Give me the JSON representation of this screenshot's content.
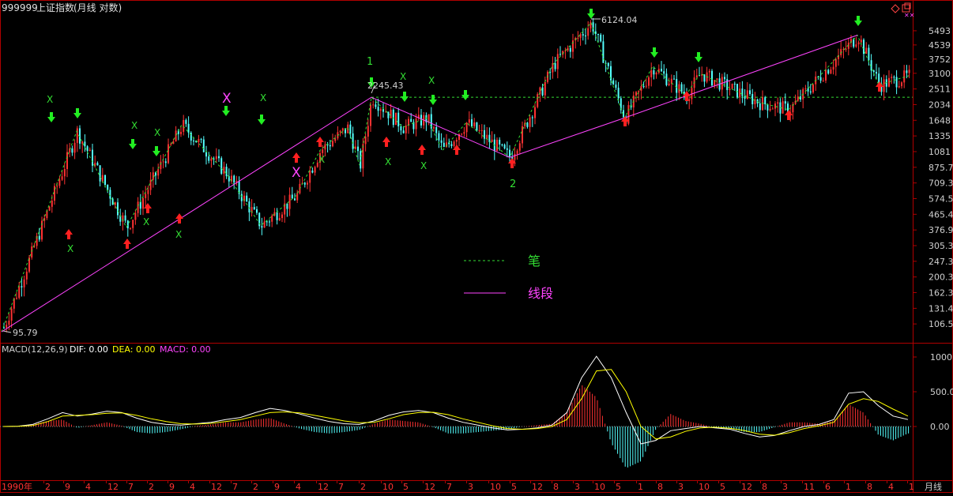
{
  "header": {
    "code": "999999",
    "name": "上证指数",
    "period_mode": "(月线 对数)"
  },
  "price_axis_labels": [
    "5493",
    "4539",
    "3752",
    "3100",
    "2511",
    "2034",
    "1648",
    "1335",
    "1081",
    "875.7",
    "709.3",
    "574.5",
    "465.4",
    "376.9",
    "305.3",
    "247.3",
    "200.3",
    "162.3",
    "131.4",
    "106.5"
  ],
  "price_axis_values": [
    5493,
    4539,
    3752,
    3100,
    2511,
    2034,
    1648,
    1335,
    1081,
    875.7,
    709.3,
    574.5,
    465.4,
    376.9,
    305.3,
    247.3,
    200.3,
    162.3,
    131.4,
    106.5
  ],
  "annotations": {
    "high_label": "6124.04",
    "low_label": "95.79",
    "mid_label": "2245.43",
    "wave_1": "1",
    "wave_2": "2",
    "x_mark": "X"
  },
  "legend": {
    "bi_label": "笔",
    "duan_label": "线段"
  },
  "macd": {
    "title": "MACD(12,26,9)",
    "dif_label": "DIF: 0.00",
    "dea_label": "DEA: 0.00",
    "macd_label": "MACD: 0.00",
    "axis_labels": [
      "1000",
      "500.0",
      "0.00"
    ],
    "axis_values": [
      1000,
      500,
      0
    ]
  },
  "time_axis": {
    "labels": [
      "1990年",
      "2",
      "9",
      "4",
      "12",
      "7",
      "2",
      "9",
      "4",
      "12",
      "7",
      "2",
      "9",
      "4",
      "12",
      "7",
      "2",
      "10",
      "5",
      "12",
      "7",
      "3",
      "10",
      "5",
      "12",
      "8",
      "3",
      "10",
      "5",
      "1",
      "8",
      "3",
      "10",
      "5",
      "12",
      "8",
      "3",
      "11",
      "6",
      "1",
      "8",
      "4",
      "1"
    ],
    "period_label": "月线"
  },
  "colors": {
    "up": "#ff3232",
    "down": "#54ffff",
    "bi": "#33dd33",
    "duan": "#ff44ff",
    "grid_red": "#b00000",
    "arrow_green": "#22ee22",
    "arrow_red": "#ff2020",
    "dif": "#ffffff",
    "dea": "#ffff00",
    "axis_text": "#d0d0d0"
  },
  "chart_data": {
    "type": "candlestick",
    "scale": "log",
    "ylim": [
      95.79,
      6124.04
    ],
    "bi_points": [
      95.79,
      1420,
      390,
      1550,
      800,
      400,
      600,
      1100,
      1500,
      900,
      2245.43,
      1500,
      1700,
      1100,
      1600,
      1000,
      3500,
      6124.04,
      1700,
      3400,
      2300,
      3100,
      2100,
      1900,
      5178,
      2650,
      3000
    ],
    "duan_points": [
      95.79,
      2245.43,
      1000,
      1700,
      5178
    ],
    "macd_dif": [
      0,
      5,
      30,
      110,
      200,
      150,
      180,
      220,
      200,
      120,
      60,
      30,
      20,
      40,
      60,
      100,
      130,
      200,
      260,
      230,
      180,
      120,
      70,
      40,
      30,
      80,
      160,
      210,
      230,
      200,
      120,
      60,
      20,
      -20,
      -50,
      -40,
      -20,
      20,
      200,
      700,
      1010,
      700,
      200,
      -250,
      -200,
      -60,
      -30,
      0,
      -20,
      -40,
      -100,
      -150,
      -130,
      -60,
      0,
      30,
      100,
      480,
      500,
      300,
      150,
      100
    ],
    "macd_dea": [
      0,
      2,
      15,
      70,
      150,
      160,
      170,
      190,
      195,
      160,
      110,
      70,
      40,
      35,
      45,
      70,
      100,
      150,
      200,
      210,
      195,
      160,
      120,
      80,
      55,
      60,
      110,
      170,
      200,
      205,
      170,
      110,
      60,
      10,
      -30,
      -40,
      -30,
      0,
      100,
      400,
      800,
      820,
      500,
      0,
      -180,
      -150,
      -70,
      -20,
      -10,
      -25,
      -60,
      -110,
      -125,
      -90,
      -30,
      10,
      60,
      320,
      400,
      360,
      250,
      150
    ]
  }
}
